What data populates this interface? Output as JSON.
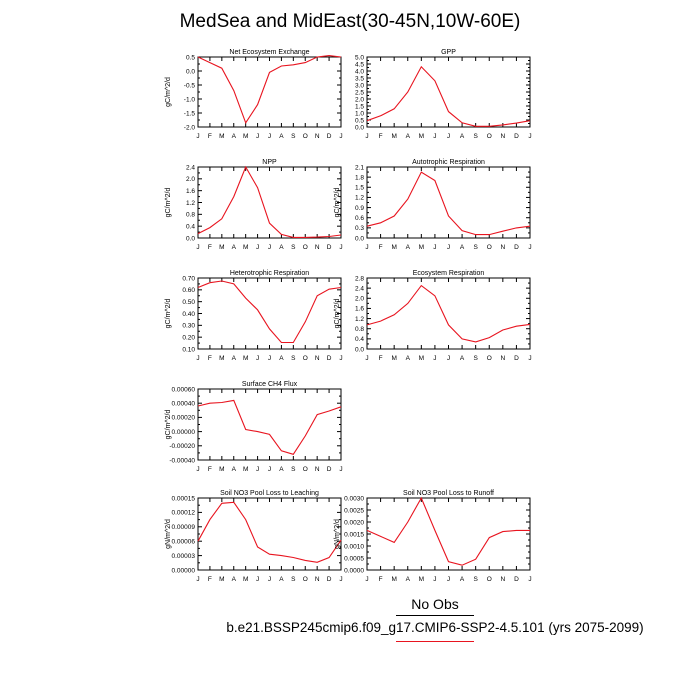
{
  "title": "MedSea and MidEast(30-45N,10W-60E)",
  "legend": {
    "obs_label": "No Obs",
    "model_label": "b.e21.BSSP245cmip6.f09_g17.CMIP6-SSP2-4.5.101 (yrs 2075-2099)",
    "obs_color": "#000000",
    "model_color": "#e8141f"
  },
  "chart_data": [
    {
      "type": "line",
      "title": "Net Ecosystem Exchange",
      "ylabel": "gC/m^2/d",
      "categories": [
        "J",
        "F",
        "M",
        "A",
        "M",
        "J",
        "J",
        "A",
        "S",
        "O",
        "N",
        "D",
        "J"
      ],
      "ylim": [
        -2.0,
        0.5
      ],
      "yticks": [
        "-2.0",
        "-1.5",
        "-1.0",
        "-0.5",
        "0.0",
        "0.5"
      ],
      "series": [
        {
          "values": [
            0.5,
            0.3,
            0.1,
            -0.7,
            -1.85,
            -1.2,
            -0.05,
            0.18,
            0.22,
            0.3,
            0.5,
            0.55,
            0.5
          ]
        }
      ]
    },
    {
      "type": "line",
      "title": "GPP",
      "ylabel": "",
      "categories": [
        "J",
        "F",
        "M",
        "A",
        "M",
        "J",
        "J",
        "A",
        "S",
        "O",
        "N",
        "D",
        "J"
      ],
      "ylim": [
        0.0,
        5.0
      ],
      "yticks": [
        "0.0",
        "0.5",
        "1.0",
        "1.5",
        "2.0",
        "2.5",
        "3.0",
        "3.5",
        "4.0",
        "4.5",
        "5.0"
      ],
      "series": [
        {
          "values": [
            0.45,
            0.8,
            1.3,
            2.5,
            4.3,
            3.3,
            1.1,
            0.3,
            0.05,
            0.05,
            0.15,
            0.28,
            0.45
          ]
        }
      ]
    },
    {
      "type": "line",
      "title": "NPP",
      "ylabel": "gC/m^2/d",
      "categories": [
        "J",
        "F",
        "M",
        "A",
        "M",
        "J",
        "J",
        "A",
        "S",
        "O",
        "N",
        "D",
        "J"
      ],
      "ylim": [
        0.0,
        2.4
      ],
      "yticks": [
        "0.0",
        "0.4",
        "0.8",
        "1.2",
        "1.6",
        "2.0",
        "2.4"
      ],
      "series": [
        {
          "values": [
            0.15,
            0.35,
            0.65,
            1.4,
            2.4,
            1.7,
            0.5,
            0.12,
            0.02,
            0.02,
            0.03,
            0.05,
            0.1
          ]
        }
      ]
    },
    {
      "type": "line",
      "title": "Autotrophic Respiration",
      "ylabel": "gC/m^2/d",
      "categories": [
        "J",
        "F",
        "M",
        "A",
        "M",
        "J",
        "J",
        "A",
        "S",
        "O",
        "N",
        "D",
        "J"
      ],
      "ylim": [
        0.0,
        2.1
      ],
      "yticks": [
        "0.0",
        "0.3",
        "0.6",
        "0.9",
        "1.2",
        "1.5",
        "1.8",
        "2.1"
      ],
      "series": [
        {
          "values": [
            0.35,
            0.45,
            0.65,
            1.15,
            1.95,
            1.7,
            0.65,
            0.22,
            0.1,
            0.1,
            0.2,
            0.3,
            0.35
          ]
        }
      ]
    },
    {
      "type": "line",
      "title": "Heterotrophic Respiration",
      "ylabel": "gC/m^2/d",
      "categories": [
        "J",
        "F",
        "M",
        "A",
        "M",
        "J",
        "J",
        "A",
        "S",
        "O",
        "N",
        "D",
        "J"
      ],
      "ylim": [
        0.1,
        0.7
      ],
      "yticks": [
        "0.10",
        "0.20",
        "0.30",
        "0.40",
        "0.50",
        "0.60",
        "0.70"
      ],
      "series": [
        {
          "values": [
            0.62,
            0.66,
            0.675,
            0.65,
            0.53,
            0.43,
            0.27,
            0.155,
            0.155,
            0.33,
            0.55,
            0.605,
            0.62
          ]
        }
      ]
    },
    {
      "type": "line",
      "title": "Ecosystem Respiration",
      "ylabel": "gC/m^2/d",
      "categories": [
        "J",
        "F",
        "M",
        "A",
        "M",
        "J",
        "J",
        "A",
        "S",
        "O",
        "N",
        "D",
        "J"
      ],
      "ylim": [
        0.0,
        2.8
      ],
      "yticks": [
        "0.0",
        "0.4",
        "0.8",
        "1.2",
        "1.6",
        "2.0",
        "2.4",
        "2.8"
      ],
      "series": [
        {
          "values": [
            0.95,
            1.1,
            1.35,
            1.8,
            2.5,
            2.1,
            0.95,
            0.4,
            0.28,
            0.45,
            0.75,
            0.9,
            0.97
          ]
        }
      ]
    },
    {
      "type": "line",
      "title": "Surface CH4 Flux",
      "ylabel": "gC/m^2/d",
      "categories": [
        "J",
        "F",
        "M",
        "A",
        "M",
        "J",
        "J",
        "A",
        "S",
        "O",
        "N",
        "D",
        "J"
      ],
      "ylim": [
        -0.0004,
        0.0006
      ],
      "yticks": [
        "-0.00040",
        "-0.00020",
        "0.00000",
        "0.00020",
        "0.00040",
        "0.00060"
      ],
      "series": [
        {
          "values": [
            0.00036,
            0.0004,
            0.00041,
            0.00044,
            3e-05,
            0.0,
            -4e-05,
            -0.00027,
            -0.00032,
            -6e-05,
            0.00024,
            0.00029,
            0.00035
          ]
        }
      ]
    },
    {
      "type": "line",
      "title": "Soil NO3 Pool Loss to Leaching",
      "ylabel": "gN/m^2/d",
      "categories": [
        "J",
        "F",
        "M",
        "A",
        "M",
        "J",
        "J",
        "A",
        "S",
        "O",
        "N",
        "D",
        "J"
      ],
      "ylim": [
        0.0,
        0.00015
      ],
      "yticks": [
        "0.00000",
        "0.00003",
        "0.00006",
        "0.00009",
        "0.00012",
        "0.00015"
      ],
      "series": [
        {
          "values": [
            6e-05,
            0.000105,
            0.000139,
            0.000141,
            0.000105,
            4.8e-05,
            3.3e-05,
            3e-05,
            2.6e-05,
            2e-05,
            1.6e-05,
            2.6e-05,
            6.2e-05
          ]
        }
      ]
    },
    {
      "type": "line",
      "title": "Soil NO3 Pool Loss to Runoff",
      "ylabel": "gN/m^2/d",
      "categories": [
        "J",
        "F",
        "M",
        "A",
        "M",
        "J",
        "J",
        "A",
        "S",
        "O",
        "N",
        "D",
        "J"
      ],
      "ylim": [
        0.0,
        0.003
      ],
      "yticks": [
        "0.0000",
        "0.0005",
        "0.0010",
        "0.0015",
        "0.0020",
        "0.0025",
        "0.0030"
      ],
      "series": [
        {
          "values": [
            0.00165,
            0.0014,
            0.00115,
            0.002,
            0.003,
            0.00165,
            0.00035,
            0.0002,
            0.00045,
            0.00135,
            0.0016,
            0.00165,
            0.00165
          ]
        }
      ]
    }
  ]
}
